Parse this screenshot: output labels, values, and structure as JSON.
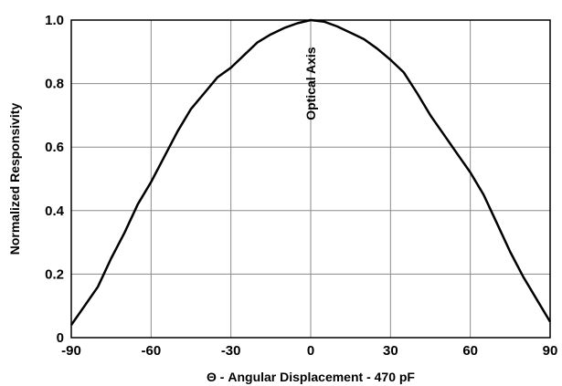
{
  "chart_data": {
    "type": "line",
    "title": "",
    "xlabel": "Θ - Angular Displacement - 470 pF",
    "ylabel": "Normalized Responsivity",
    "xlim": [
      -90,
      90
    ],
    "ylim": [
      0,
      1.0
    ],
    "x_ticks": [
      -90,
      -60,
      -30,
      0,
      30,
      60,
      90
    ],
    "x_tick_labels": [
      "-90",
      "-60",
      "-30",
      "0",
      "30",
      "60",
      "90"
    ],
    "y_ticks": [
      0,
      0.2,
      0.4,
      0.6,
      0.8,
      1.0
    ],
    "y_tick_labels": [
      "0",
      "0.2",
      "0.4",
      "0.6",
      "0.8",
      "1.0"
    ],
    "grid": true,
    "annotations": [
      {
        "text": "Optical Axis",
        "x": 0,
        "y": 0.8,
        "rotation": "vertical"
      }
    ],
    "series": [
      {
        "color": "#000000",
        "points": [
          [
            -90,
            0.04
          ],
          [
            -85,
            0.1
          ],
          [
            -80,
            0.16
          ],
          [
            -75,
            0.25
          ],
          [
            -70,
            0.33
          ],
          [
            -65,
            0.42
          ],
          [
            -60,
            0.49
          ],
          [
            -55,
            0.57
          ],
          [
            -50,
            0.65
          ],
          [
            -45,
            0.72
          ],
          [
            -40,
            0.77
          ],
          [
            -35,
            0.82
          ],
          [
            -30,
            0.85
          ],
          [
            -25,
            0.89
          ],
          [
            -20,
            0.93
          ],
          [
            -15,
            0.955
          ],
          [
            -10,
            0.975
          ],
          [
            -5,
            0.99
          ],
          [
            0,
            1.0
          ],
          [
            5,
            0.995
          ],
          [
            10,
            0.98
          ],
          [
            15,
            0.96
          ],
          [
            20,
            0.94
          ],
          [
            25,
            0.91
          ],
          [
            30,
            0.875
          ],
          [
            35,
            0.835
          ],
          [
            40,
            0.77
          ],
          [
            45,
            0.7
          ],
          [
            50,
            0.64
          ],
          [
            55,
            0.58
          ],
          [
            60,
            0.52
          ],
          [
            65,
            0.45
          ],
          [
            70,
            0.36
          ],
          [
            75,
            0.27
          ],
          [
            80,
            0.19
          ],
          [
            85,
            0.12
          ],
          [
            90,
            0.05
          ]
        ]
      }
    ]
  }
}
